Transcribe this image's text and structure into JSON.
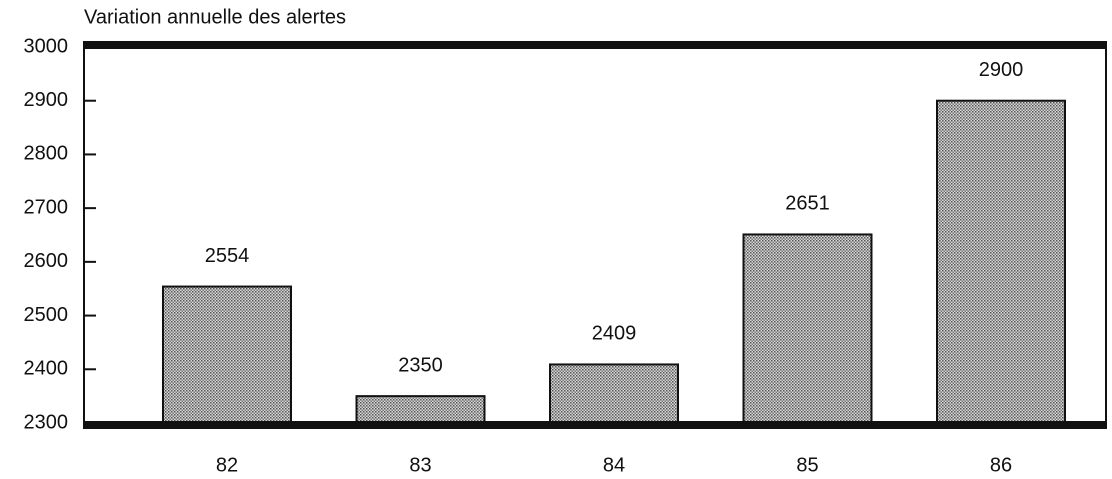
{
  "chart_data": {
    "type": "bar",
    "title": "Variation annuelle des alertes",
    "categories": [
      "82",
      "83",
      "84",
      "85",
      "86"
    ],
    "values": [
      2554,
      2350,
      2409,
      2651,
      2900
    ],
    "color": "#8a8a8a",
    "ylim": [
      2300,
      3000
    ],
    "yticks": [
      2300,
      2400,
      2500,
      2600,
      2700,
      2800,
      2900,
      3000
    ]
  }
}
